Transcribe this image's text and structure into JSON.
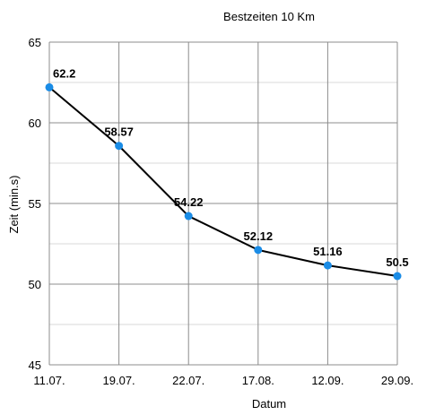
{
  "chart_data": {
    "type": "line",
    "title": "Bestzeiten 10 Km",
    "xlabel": "Datum",
    "ylabel": "Zeit (min.s)",
    "categories": [
      "11.07.",
      "19.07.",
      "22.07.",
      "17.08.",
      "12.09.",
      "29.09."
    ],
    "series": [
      {
        "values": [
          62.2,
          58.57,
          54.22,
          52.12,
          51.16,
          50.5
        ],
        "labels": [
          "62.2",
          "58.57",
          "54.22",
          "52.12",
          "51.16",
          "50.5"
        ],
        "line_color": "#000000",
        "marker_color": "#1a8ce6"
      }
    ],
    "ylim": [
      45,
      65
    ],
    "yticks": [
      45,
      50,
      55,
      60,
      65
    ],
    "grid": true,
    "legend": "none"
  }
}
